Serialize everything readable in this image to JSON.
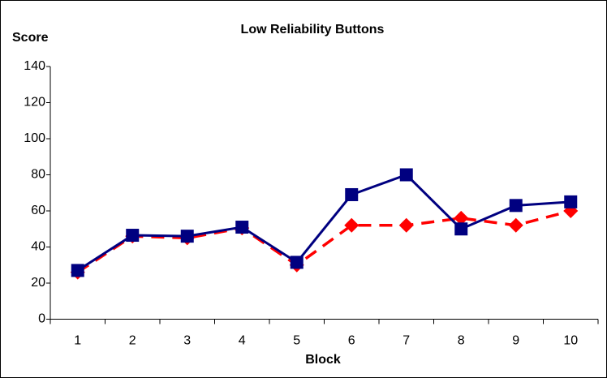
{
  "chart_data": {
    "type": "line",
    "title": "Low Reliability Buttons",
    "y_label": "Score",
    "x_label": "Block",
    "categories": [
      "1",
      "2",
      "3",
      "4",
      "5",
      "6",
      "7",
      "8",
      "9",
      "10"
    ],
    "series": [
      {
        "color": "#ff0000",
        "marker": "diamond",
        "dashed": true,
        "values": [
          26,
          46,
          45,
          50.5,
          30,
          52,
          52,
          56,
          52,
          60
        ]
      },
      {
        "color": "#000080",
        "marker": "square",
        "dashed": false,
        "values": [
          27,
          46.5,
          46,
          51,
          31.5,
          69,
          80,
          50,
          63,
          65
        ]
      }
    ],
    "ylim": [
      0,
      140
    ],
    "yticks": [
      0,
      20,
      40,
      60,
      80,
      100,
      120,
      140
    ],
    "grid": false
  }
}
